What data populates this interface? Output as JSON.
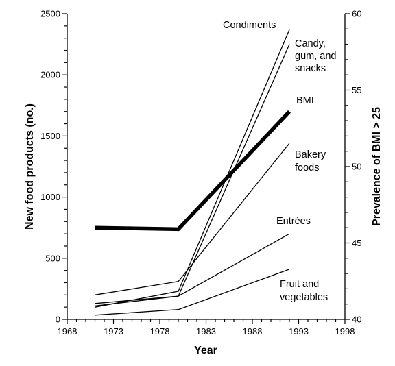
{
  "chart_data": {
    "type": "line",
    "xlabel": "Year",
    "ylabel": "New food products (no.)",
    "y2label": "Prevalence of BMI > 25",
    "xlim": [
      1968,
      1998
    ],
    "ylim": [
      0,
      2500
    ],
    "y2lim": [
      40,
      60
    ],
    "x_ticks": [
      1968,
      1973,
      1978,
      1983,
      1988,
      1993,
      1998
    ],
    "y_ticks": [
      0,
      500,
      1000,
      1500,
      2000,
      2500
    ],
    "y2_ticks": [
      40,
      45,
      50,
      55,
      60
    ],
    "grid": false,
    "series": [
      {
        "name": "Condiments",
        "axis": "left",
        "x": [
          1971,
          1980,
          1992
        ],
        "values": [
          100,
          230,
          2370
        ],
        "emphasis": false
      },
      {
        "name": "Candy, gum, and snacks",
        "axis": "left",
        "x": [
          1971,
          1980,
          1992
        ],
        "values": [
          130,
          190,
          2250
        ],
        "emphasis": false
      },
      {
        "name": "BMI",
        "axis": "right",
        "x": [
          1971,
          1980,
          1992
        ],
        "values": [
          46.0,
          45.9,
          53.6
        ],
        "emphasis": true
      },
      {
        "name": "Bakery foods",
        "axis": "left",
        "x": [
          1971,
          1980,
          1992
        ],
        "values": [
          200,
          310,
          1440
        ],
        "emphasis": false
      },
      {
        "name": "Entrées",
        "axis": "left",
        "x": [
          1971,
          1980,
          1992
        ],
        "values": [
          110,
          190,
          700
        ],
        "emphasis": false
      },
      {
        "name": "Fruit and vegetables",
        "axis": "left",
        "x": [
          1971,
          1980,
          1992
        ],
        "values": [
          35,
          80,
          410
        ],
        "emphasis": false
      }
    ]
  },
  "labels": {
    "condiments": [
      "Condiments"
    ],
    "candy": [
      "Candy,",
      "gum, and",
      "snacks"
    ],
    "bmi": [
      "BMI"
    ],
    "bakery": [
      "Bakery",
      "foods"
    ],
    "entrees": [
      "Entrées"
    ],
    "fruit": [
      "Fruit and",
      "vegetables"
    ]
  }
}
